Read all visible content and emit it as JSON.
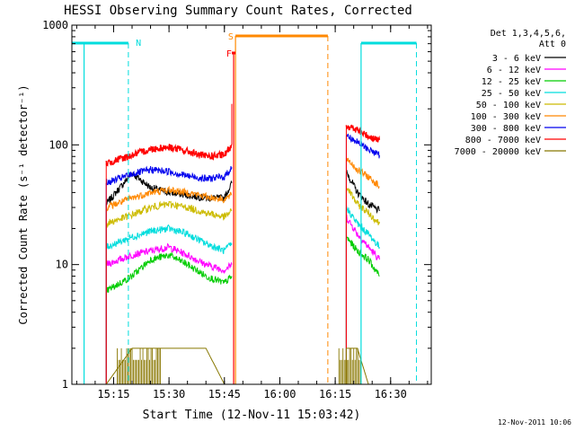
{
  "chart_data": {
    "type": "line",
    "title": "HESSI Observing Summary Count Rates, Corrected",
    "xlabel": "Start Time (12-Nov-11 15:03:42)",
    "ylabel": "Corrected Count Rate (s⁻¹ detector⁻¹)",
    "xlim": [
      "15:03:42",
      "16:41:00"
    ],
    "x_unit": "UT on 12-Nov-2011",
    "ylim": [
      1,
      1000
    ],
    "yscale": "log",
    "x_ticks": [
      "15:15",
      "15:30",
      "15:45",
      "16:00",
      "16:15",
      "16:30"
    ],
    "y_ticks": [
      {
        "value": 1,
        "label": "1"
      },
      {
        "value": 10,
        "label": "10"
      },
      {
        "value": 100,
        "label": "100"
      },
      {
        "value": 1000,
        "label": "1000"
      }
    ],
    "legend_header": [
      "Det 1,3,4,5,6,",
      "Att 0"
    ],
    "legend_position": "right",
    "footer": "12-Nov-2011 10:06",
    "x": [
      "15:13",
      "15:20",
      "15:25",
      "15:30",
      "15:35",
      "15:40",
      "15:45",
      "15:47",
      "16:18",
      "16:21",
      "16:24",
      "16:27"
    ],
    "series": [
      {
        "name": "3 - 6 keV",
        "color": "#000000",
        "values": [
          32,
          58,
          44,
          40,
          38,
          36,
          36,
          48,
          60,
          40,
          32,
          28
        ]
      },
      {
        "name": "6 - 12 keV",
        "color": "#ff00ff",
        "values": [
          10,
          12,
          13,
          14,
          12,
          10,
          9,
          10,
          25,
          18,
          14,
          11
        ]
      },
      {
        "name": "12 - 25 keV",
        "color": "#00cc00",
        "values": [
          6,
          8,
          11,
          12,
          10,
          8,
          7,
          8,
          17,
          13,
          11,
          8
        ]
      },
      {
        "name": "25 - 50 keV",
        "color": "#00dddd",
        "values": [
          14,
          17,
          19,
          20,
          18,
          15,
          13,
          15,
          30,
          22,
          18,
          14
        ]
      },
      {
        "name": "50 - 100 keV",
        "color": "#ccbb00",
        "values": [
          22,
          26,
          30,
          32,
          30,
          27,
          25,
          28,
          45,
          32,
          27,
          22
        ]
      },
      {
        "name": "100 - 300 keV",
        "color": "#ff8800",
        "values": [
          30,
          36,
          40,
          42,
          40,
          37,
          35,
          38,
          78,
          62,
          54,
          45
        ]
      },
      {
        "name": "300 - 800 keV",
        "color": "#0000ee",
        "values": [
          48,
          57,
          62,
          60,
          55,
          52,
          54,
          65,
          120,
          105,
          92,
          82
        ]
      },
      {
        "name": "800 - 7000 keV",
        "color": "#ff0000",
        "values": [
          70,
          82,
          92,
          96,
          88,
          80,
          82,
          100,
          145,
          132,
          118,
          110
        ]
      },
      {
        "name": "7000 - 20000 keV",
        "color": "#887700",
        "values": [
          1,
          2,
          2,
          2,
          2,
          2,
          1,
          1,
          2,
          2,
          1,
          1
        ]
      }
    ],
    "flags": [
      {
        "label": "N",
        "color": "#00dddd"
      },
      {
        "label": "S",
        "color": "#ff8800"
      },
      {
        "label": "F",
        "color": "#ff0000"
      }
    ]
  }
}
